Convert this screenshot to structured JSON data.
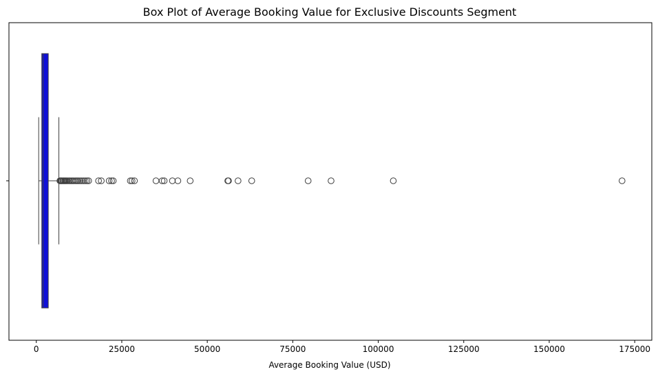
{
  "chart_data": {
    "type": "box",
    "title": "Box Plot of Average Booking Value for Exclusive Discounts Segment",
    "xlabel": "Average Booking Value (USD)",
    "ylabel": "",
    "orientation": "horizontal",
    "xlim": [
      -8000,
      180000
    ],
    "xticks": [
      0,
      25000,
      50000,
      75000,
      100000,
      125000,
      150000,
      175000
    ],
    "grid": false,
    "legend": "none",
    "box": {
      "whisker_low": 700,
      "q1": 1600,
      "median": 2000,
      "q3": 3500,
      "whisker_high": 6600,
      "color": "#1010d8"
    },
    "outliers": [
      6900,
      7100,
      7300,
      7500,
      7800,
      8000,
      8300,
      8500,
      8800,
      9100,
      9500,
      9800,
      10200,
      10600,
      11000,
      11500,
      11900,
      12300,
      12800,
      13300,
      13800,
      14300,
      14800,
      15300,
      18200,
      19000,
      21300,
      22000,
      22500,
      27500,
      28000,
      28700,
      35000,
      36800,
      37400,
      39800,
      41400,
      45000,
      56000,
      56200,
      59000,
      63000,
      79500,
      86200,
      104400,
      171300
    ]
  }
}
